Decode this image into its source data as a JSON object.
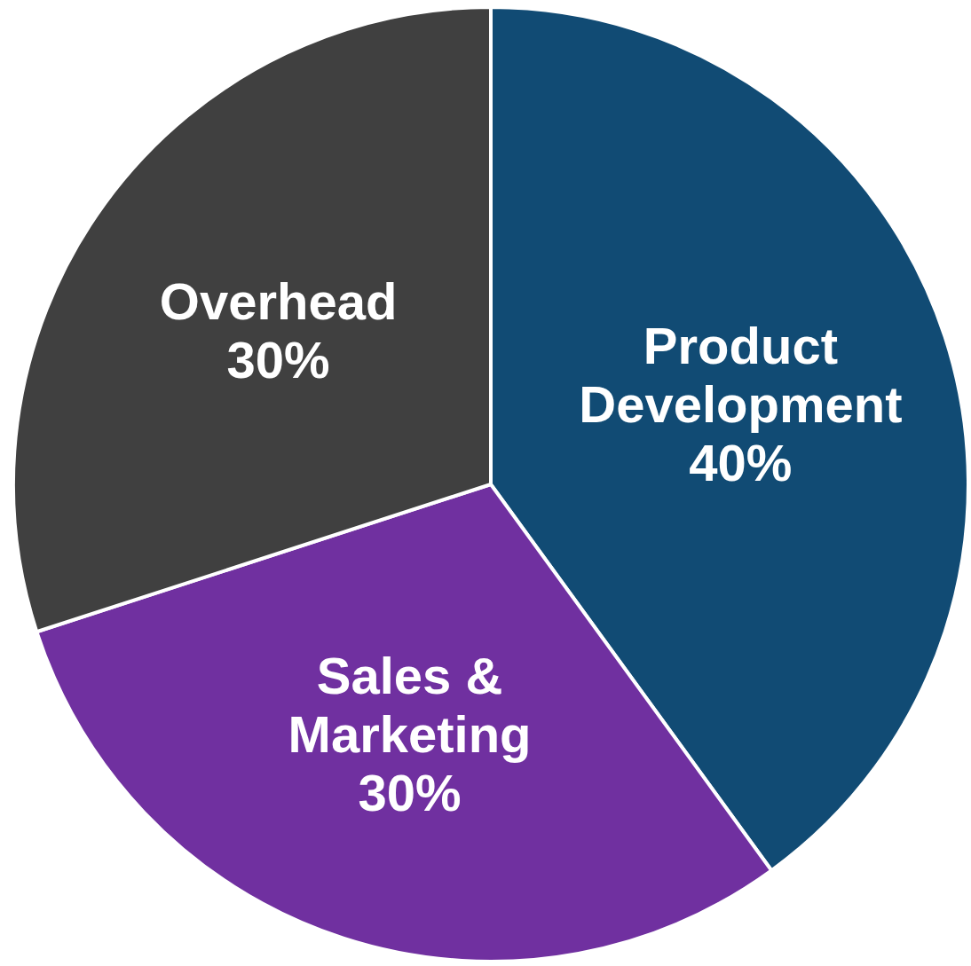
{
  "chart_data": {
    "type": "pie",
    "categories": [
      "Product Development",
      "Sales & Marketing",
      "Overhead"
    ],
    "values": [
      40,
      30,
      30
    ],
    "colors": [
      "#114b74",
      "#7030a0",
      "#404040"
    ],
    "value_labels": [
      "40%",
      "30%",
      "30%"
    ],
    "legend": false
  }
}
